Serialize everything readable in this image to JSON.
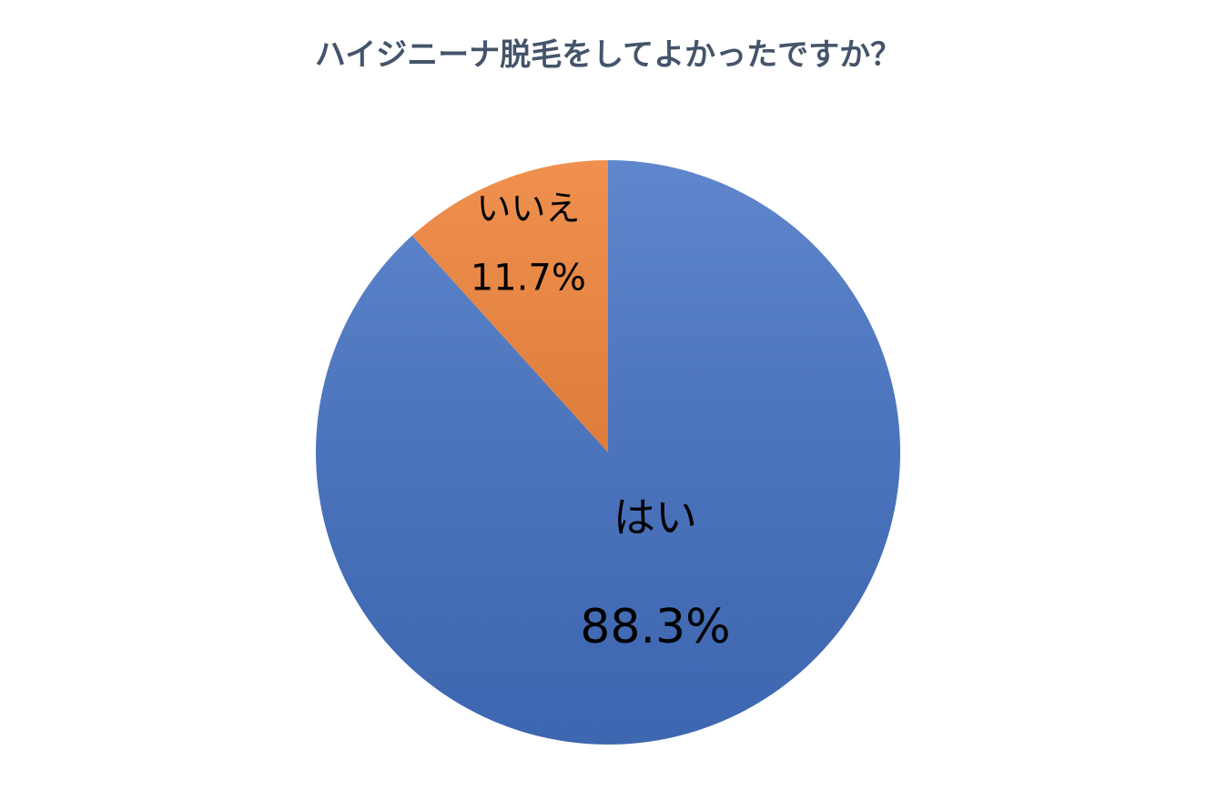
{
  "chart_data": {
    "type": "pie",
    "title": "ハイジニーナ脱毛をしてよかったですか？",
    "categories": [
      "はい",
      "いいえ"
    ],
    "values": [
      88.3,
      11.7
    ],
    "value_labels": [
      "88.3%",
      "11.7%"
    ],
    "colors": [
      "#4472c4",
      "#ed7d31"
    ]
  }
}
